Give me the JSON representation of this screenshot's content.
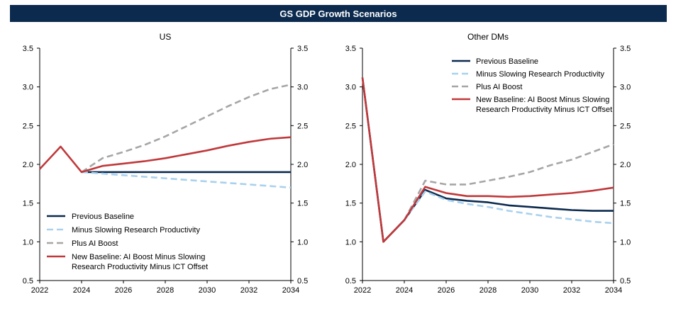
{
  "header": {
    "title": "GS GDP Growth Scenarios"
  },
  "chart_data": [
    {
      "type": "line",
      "title": "US",
      "xlabel": "",
      "ylabel": "",
      "xlim": [
        2022,
        2034
      ],
      "ylim": [
        0.5,
        3.5
      ],
      "x_ticks": [
        2022,
        2024,
        2026,
        2028,
        2030,
        2032,
        2034
      ],
      "y_ticks": [
        0.5,
        1.0,
        1.5,
        2.0,
        2.5,
        3.0,
        3.5
      ],
      "grid": false,
      "legend_position": "bottom-left",
      "series": [
        {
          "name": "Previous Baseline",
          "color": "#0b2a4e",
          "dash": "solid",
          "x": [
            2024,
            2025,
            2026,
            2027,
            2028,
            2029,
            2030,
            2031,
            2032,
            2033,
            2034
          ],
          "values": [
            1.9,
            1.9,
            1.9,
            1.9,
            1.9,
            1.9,
            1.9,
            1.9,
            1.9,
            1.9,
            1.9
          ]
        },
        {
          "name": "Minus Slowing Research Productivity",
          "color": "#a9d1ee",
          "dash": "dashed",
          "x": [
            2024,
            2025,
            2026,
            2027,
            2028,
            2029,
            2030,
            2031,
            2032,
            2033,
            2034
          ],
          "values": [
            1.9,
            1.88,
            1.86,
            1.84,
            1.82,
            1.8,
            1.78,
            1.76,
            1.74,
            1.72,
            1.7
          ]
        },
        {
          "name": "Plus AI Boost",
          "color": "#a6a6a6",
          "dash": "dashed",
          "x": [
            2024,
            2025,
            2026,
            2027,
            2028,
            2029,
            2030,
            2031,
            2032,
            2033,
            2034
          ],
          "values": [
            1.9,
            2.08,
            2.16,
            2.25,
            2.36,
            2.49,
            2.62,
            2.75,
            2.87,
            2.97,
            3.03
          ]
        },
        {
          "name": "New Baseline: AI Boost Minus Slowing Research Productivity Minus ICT Offset",
          "color": "#c0393b",
          "dash": "solid",
          "x": [
            2022,
            2023,
            2024,
            2025,
            2026,
            2027,
            2028,
            2029,
            2030,
            2031,
            2032,
            2033,
            2034
          ],
          "values": [
            1.94,
            2.23,
            1.9,
            1.98,
            2.01,
            2.04,
            2.08,
            2.13,
            2.18,
            2.24,
            2.29,
            2.33,
            2.35
          ]
        }
      ]
    },
    {
      "type": "line",
      "title": "Other DMs",
      "xlabel": "",
      "ylabel": "",
      "xlim": [
        2022,
        2034
      ],
      "ylim": [
        0.5,
        3.5
      ],
      "x_ticks": [
        2022,
        2024,
        2026,
        2028,
        2030,
        2032,
        2034
      ],
      "y_ticks": [
        0.5,
        1.0,
        1.5,
        2.0,
        2.5,
        3.0,
        3.5
      ],
      "grid": false,
      "legend_position": "top-right",
      "series": [
        {
          "name": "Previous Baseline",
          "color": "#0b2a4e",
          "dash": "solid",
          "x": [
            2022,
            2023,
            2024,
            2025,
            2026,
            2027,
            2028,
            2029,
            2030,
            2031,
            2032,
            2033,
            2034
          ],
          "values": [
            3.12,
            1.0,
            1.28,
            1.67,
            1.56,
            1.53,
            1.51,
            1.47,
            1.45,
            1.43,
            1.41,
            1.4,
            1.4
          ]
        },
        {
          "name": "Minus Slowing Research Productivity",
          "color": "#a9d1ee",
          "dash": "dashed",
          "x": [
            2024,
            2025,
            2026,
            2027,
            2028,
            2029,
            2030,
            2031,
            2032,
            2033,
            2034
          ],
          "values": [
            1.28,
            1.65,
            1.54,
            1.49,
            1.45,
            1.4,
            1.36,
            1.32,
            1.29,
            1.26,
            1.24
          ]
        },
        {
          "name": "Plus AI Boost",
          "color": "#a6a6a6",
          "dash": "dashed",
          "x": [
            2024,
            2025,
            2026,
            2027,
            2028,
            2029,
            2030,
            2031,
            2032,
            2033,
            2034
          ],
          "values": [
            1.28,
            1.79,
            1.74,
            1.74,
            1.79,
            1.84,
            1.9,
            1.99,
            2.06,
            2.16,
            2.26
          ]
        },
        {
          "name": "New Baseline: AI Boost Minus Slowing Research Productivity Minus ICT Offset",
          "color": "#c0393b",
          "dash": "solid",
          "x": [
            2022,
            2023,
            2024,
            2025,
            2026,
            2027,
            2028,
            2029,
            2030,
            2031,
            2032,
            2033,
            2034
          ],
          "values": [
            3.12,
            1.0,
            1.28,
            1.71,
            1.63,
            1.59,
            1.59,
            1.58,
            1.59,
            1.61,
            1.63,
            1.66,
            1.7
          ]
        }
      ]
    }
  ],
  "legend": {
    "entries": [
      {
        "lines": [
          "Previous Baseline"
        ]
      },
      {
        "lines": [
          "Minus Slowing Research Productivity"
        ]
      },
      {
        "lines": [
          "Plus AI Boost"
        ]
      },
      {
        "lines": [
          "New Baseline: AI Boost Minus Slowing",
          "Research Productivity Minus ICT Offset"
        ]
      }
    ]
  }
}
